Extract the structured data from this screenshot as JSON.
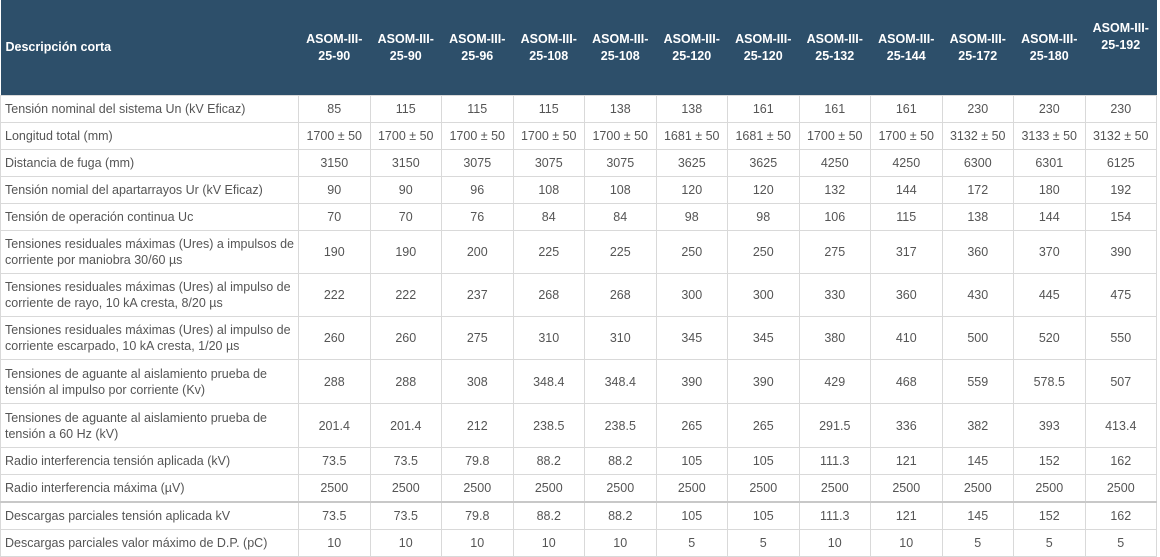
{
  "table": {
    "header_label": "Descripción corta",
    "models": [
      "ASOM-III-\n25-90",
      "ASOM-III-\n25-90",
      "ASOM-III-\n25-96",
      "ASOM-III-\n25-108",
      "ASOM-III-\n25-108",
      "ASOM-III-\n25-120",
      "ASOM-III-\n25-120",
      "ASOM-III-\n25-132",
      "ASOM-III-\n25-144",
      "ASOM-III-\n25-172",
      "ASOM-III-\n25-180",
      "ASOM-III-\n25-192"
    ],
    "rows": [
      {
        "label": "Tensión nominal del sistema Un (kV Eficaz)",
        "values": [
          "85",
          "115",
          "115",
          "115",
          "138",
          "138",
          "161",
          "161",
          "161",
          "230",
          "230",
          "230"
        ]
      },
      {
        "label": "Longitud total (mm)",
        "values": [
          "1700 ± 50",
          "1700 ± 50",
          "1700 ± 50",
          "1700 ± 50",
          "1700 ± 50",
          "1681 ± 50",
          "1681 ± 50",
          "1700 ± 50",
          "1700 ± 50",
          "3132 ± 50",
          "3133 ± 50",
          "3132 ± 50"
        ]
      },
      {
        "label": "Distancia de fuga (mm)",
        "values": [
          "3150",
          "3150",
          "3075",
          "3075",
          "3075",
          "3625",
          "3625",
          "4250",
          "4250",
          "6300",
          "6301",
          "6125"
        ]
      },
      {
        "label": "Tensión nomial del apartarrayos Ur (kV Eficaz)",
        "values": [
          "90",
          "90",
          "96",
          "108",
          "108",
          "120",
          "120",
          "132",
          "144",
          "172",
          "180",
          "192"
        ]
      },
      {
        "label": "Tensión de operación continua Uc",
        "values": [
          "70",
          "70",
          "76",
          "84",
          "84",
          "98",
          "98",
          "106",
          "115",
          "138",
          "144",
          "154"
        ]
      },
      {
        "label": "Tensiones residuales máximas (Ures) a impulsos de corriente por maniobra 30/60 µs",
        "values": [
          "190",
          "190",
          "200",
          "225",
          "225",
          "250",
          "250",
          "275",
          "317",
          "360",
          "370",
          "390"
        ]
      },
      {
        "label": "Tensiones residuales máximas (Ures) al impulso de corriente de rayo, 10 kA cresta, 8/20 µs",
        "values": [
          "222",
          "222",
          "237",
          "268",
          "268",
          "300",
          "300",
          "330",
          "360",
          "430",
          "445",
          "475"
        ]
      },
      {
        "label": "Tensiones residuales máximas (Ures) al impulso de corriente escarpado, 10 kA cresta, 1/20 µs",
        "values": [
          "260",
          "260",
          "275",
          "310",
          "310",
          "345",
          "345",
          "380",
          "410",
          "500",
          "520",
          "550"
        ]
      },
      {
        "label": "Tensiones de aguante al aislamiento prueba de tensión al impulso por corriente (Kv)",
        "values": [
          "288",
          "288",
          "308",
          "348.4",
          "348.4",
          "390",
          "390",
          "429",
          "468",
          "559",
          "578.5",
          "507"
        ]
      },
      {
        "label": "Tensiones de aguante al aislamiento prueba de tensión a 60 Hz (kV)",
        "values": [
          "201.4",
          "201.4",
          "212",
          "238.5",
          "238.5",
          "265",
          "265",
          "291.5",
          "336",
          "382",
          "393",
          "413.4"
        ]
      },
      {
        "label": "Radio interferencia tensión aplicada (kV)",
        "values": [
          "73.5",
          "73.5",
          "79.8",
          "88.2",
          "88.2",
          "105",
          "105",
          "111.3",
          "121",
          "145",
          "152",
          "162"
        ]
      },
      {
        "label": "Radio interferencia máxima (µV)",
        "values": [
          "2500",
          "2500",
          "2500",
          "2500",
          "2500",
          "2500",
          "2500",
          "2500",
          "2500",
          "2500",
          "2500",
          "2500"
        ]
      },
      {
        "label": "Descargas parciales tensión aplicada kV",
        "values": [
          "73.5",
          "73.5",
          "79.8",
          "88.2",
          "88.2",
          "105",
          "105",
          "111.3",
          "121",
          "145",
          "152",
          "162"
        ]
      },
      {
        "label": "Descargas parciales valor máximo de D.P. (pC)",
        "values": [
          "10",
          "10",
          "10",
          "10",
          "10",
          "5",
          "5",
          "10",
          "10",
          "5",
          "5",
          "5"
        ]
      }
    ]
  }
}
